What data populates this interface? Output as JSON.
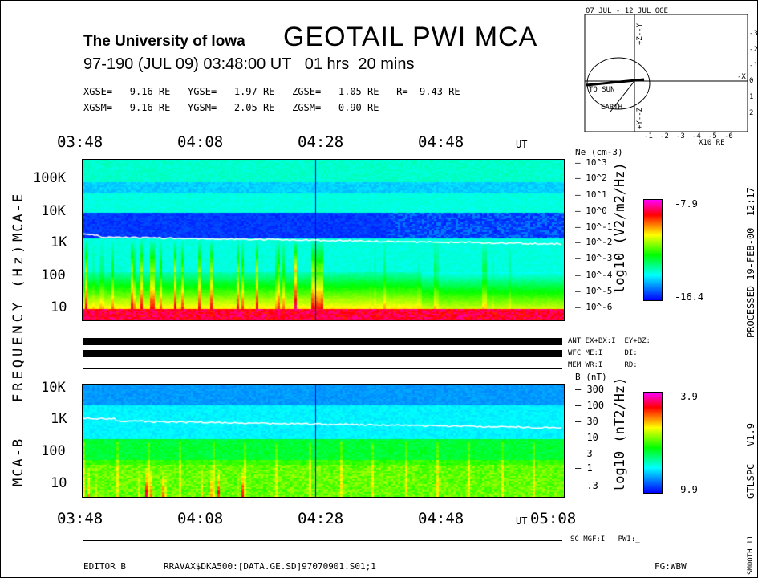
{
  "header": {
    "institution": "The University of Iowa",
    "title": "GEOTAIL PWI MCA",
    "subtitle": "97-190 (JUL 09) 03:48:00 UT   01 hrs  20 mins",
    "coords1": "XGSE=  -9.16 RE   YGSE=   1.97 RE   ZGSE=   1.05 RE   R=  9.43 RE",
    "coords2": "XGSM=  -9.16 RE   YGSM=   2.05 RE   ZGSM=   0.90 RE"
  },
  "orbit": {
    "title": "07 JUL - 12 JUL  OGE",
    "to_sun": "TO SUN",
    "earth": "EARTH",
    "xunit": "X10 RE",
    "xlabel": "-X",
    "ztop": "+Z--Y",
    "zbot": "+Y--Z",
    "xticks": [
      "-1",
      "-2",
      "-3",
      "-4",
      "-5",
      "-6"
    ],
    "yticks": [
      "-3",
      "-2",
      "-1",
      "0",
      "1",
      "2"
    ]
  },
  "chart_data": [
    {
      "type": "heatmap",
      "title": "MCA-E",
      "ylabel": "FREQUENCY (Hz)",
      "xlabel": "UT",
      "x_ticks": [
        "03:48",
        "04:08",
        "04:28",
        "04:48"
      ],
      "x_unit": "UT",
      "y_ticks": [
        "100K",
        "10K",
        "1K",
        "100",
        "10"
      ],
      "right_axis_label": "Ne (cm-3)",
      "right_ticks": [
        "10^3",
        "10^2",
        "10^1",
        "10^0",
        "10^-1",
        "10^-2",
        "10^-3",
        "10^-4",
        "10^-5",
        "10^-6"
      ],
      "colorbar": {
        "label": "log10 (V2/m2/Hz)",
        "max": "-7.9",
        "min": "-16.4"
      }
    },
    {
      "type": "heatmap",
      "title": "MCA-B",
      "ylabel": "FREQUENCY (Hz)",
      "x_ticks": [
        "03:48",
        "04:08",
        "04:28",
        "04:48",
        "05:08"
      ],
      "x_unit": "UT",
      "y_ticks": [
        "10K",
        "1K",
        "100",
        "10"
      ],
      "right_axis_label": "B (nT)",
      "right_ticks": [
        "300",
        "100",
        "30",
        "10",
        "3",
        "1",
        ".3"
      ],
      "colorbar": {
        "label": "log10 (nT2/Hz)",
        "max": "-3.9",
        "min": "-9.9"
      }
    }
  ],
  "status": {
    "ant": "ANT EX+BX:I  EY+BZ:_",
    "wfc": "WFC ME:I     DI:_",
    "mem": "MEM WR:I     RD:_",
    "sc": "SC MGF:I   PWI:_"
  },
  "footer": {
    "editor": "EDITOR B",
    "file": "RRAVAX$DKA500:[DATA.GE.SD]97070901.S01;1",
    "fg": "FG:WBW"
  },
  "side": {
    "processed": "PROCESSED 19-FEB-00  12:17",
    "version": "GTLSPC   V1.9",
    "smooth": "SMOOTH 11"
  }
}
